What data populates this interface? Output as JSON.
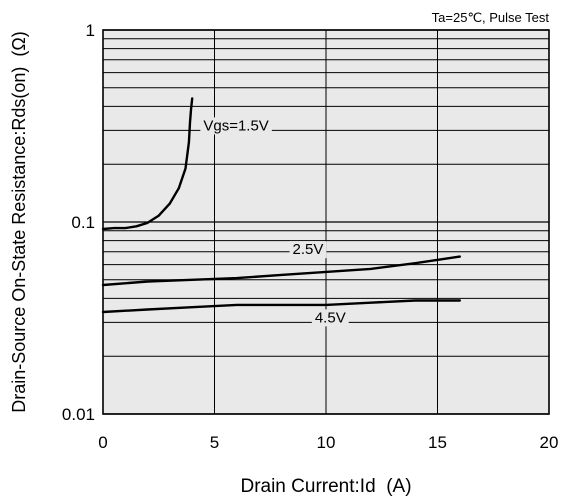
{
  "chart_data": {
    "type": "line",
    "title": "",
    "annotation": "Ta=25℃, Pulse Test",
    "xlabel": "Drain Current:Id  (A)",
    "ylabel": "Drain-Source On-State Resistance:Rds(on)  (Ω)",
    "xlim": [
      0,
      20
    ],
    "ylim": [
      0.01,
      1
    ],
    "y_scale": "log",
    "grid": true,
    "x_ticks": [
      0,
      5,
      10,
      15,
      20
    ],
    "x_tick_labels": [
      "0",
      "5",
      "10",
      "15",
      "20"
    ],
    "y_ticks": [
      0.01,
      0.1,
      1
    ],
    "y_tick_labels": [
      "0.01",
      "0.1",
      "1"
    ],
    "series": [
      {
        "name": "Vgs=1.5V",
        "label_at": [
          4.5,
          0.3
        ],
        "x": [
          0,
          0.5,
          1,
          1.5,
          2,
          2.5,
          3,
          3.4,
          3.7,
          3.85,
          3.9,
          3.95,
          4.0
        ],
        "y": [
          0.092,
          0.093,
          0.093,
          0.095,
          0.099,
          0.108,
          0.125,
          0.15,
          0.19,
          0.26,
          0.33,
          0.39,
          0.44
        ]
      },
      {
        "name": "2.5V",
        "label_at": [
          8.5,
          0.068
        ],
        "x": [
          0,
          2,
          4,
          6,
          8,
          10,
          12,
          14,
          16
        ],
        "y": [
          0.047,
          0.049,
          0.05,
          0.051,
          0.053,
          0.055,
          0.057,
          0.061,
          0.066
        ]
      },
      {
        "name": "4.5V",
        "label_at": [
          9.5,
          0.03
        ],
        "x": [
          0,
          2,
          4,
          6,
          8,
          10,
          12,
          14,
          16
        ],
        "y": [
          0.034,
          0.035,
          0.036,
          0.037,
          0.037,
          0.037,
          0.038,
          0.039,
          0.039
        ]
      }
    ]
  }
}
